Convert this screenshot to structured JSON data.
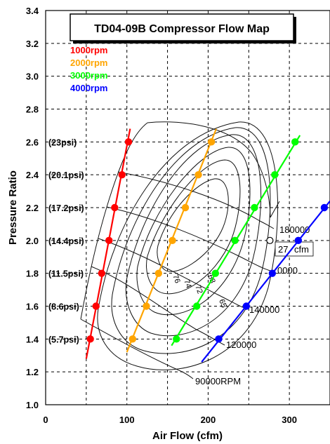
{
  "chart_data": {
    "type": "line",
    "title": "TD04-09B Compressor Flow Map",
    "xlabel": "Air Flow (cfm)",
    "ylabel": "Pressure Ratio",
    "xlim": [
      0,
      350
    ],
    "ylim": [
      1.0,
      3.4
    ],
    "xticks": [
      "0",
      "100",
      "200",
      "300"
    ],
    "yticks": [
      "1.0",
      "1.2",
      "1.4",
      "1.6",
      "1.8",
      "2.0",
      "2.2",
      "2.4",
      "2.6",
      "2.8",
      "3.0",
      "3.2",
      "3.4"
    ],
    "psi_labels": [
      {
        "y": 2.6,
        "label": "(23psi)"
      },
      {
        "y": 2.4,
        "label": "(20.1psi)"
      },
      {
        "y": 2.2,
        "label": "(17.2psi)"
      },
      {
        "y": 2.0,
        "label": "(14.4psi)"
      },
      {
        "y": 1.8,
        "label": "(11.5psi)"
      },
      {
        "y": 1.6,
        "label": "(8.6psi)"
      },
      {
        "y": 1.4,
        "label": "(5.7psi)"
      }
    ],
    "grid": true,
    "legend_position": "top-left",
    "series": [
      {
        "name": "1000rpm",
        "color": "#ff0000",
        "x": [
          55,
          62,
          69,
          78,
          85,
          94,
          102
        ],
        "y": [
          1.4,
          1.6,
          1.8,
          2.0,
          2.2,
          2.4,
          2.6
        ],
        "line_x": [
          50,
          104
        ],
        "line_y": [
          1.28,
          2.68
        ]
      },
      {
        "name": "2000rpm",
        "color": "#ffa500",
        "x": [
          107,
          124,
          139,
          156,
          172,
          188,
          204
        ],
        "y": [
          1.4,
          1.6,
          1.8,
          2.0,
          2.2,
          2.4,
          2.6
        ],
        "line_x": [
          100,
          210
        ],
        "line_y": [
          1.32,
          2.68
        ]
      },
      {
        "name": "3000rpm",
        "color": "#00ff00",
        "x": [
          161,
          186,
          209,
          233,
          257,
          282,
          307
        ],
        "y": [
          1.4,
          1.6,
          1.8,
          2.0,
          2.2,
          2.4,
          2.6
        ],
        "line_x": [
          155,
          313
        ],
        "line_y": [
          1.36,
          2.64
        ]
      },
      {
        "name": "4000rpm",
        "color": "#0000ff",
        "x": [
          213,
          247,
          279,
          311,
          343
        ],
        "y": [
          1.4,
          1.6,
          1.8,
          2.0,
          2.2
        ],
        "line_x": [
          192,
          350
        ],
        "line_y": [
          1.26,
          2.24
        ]
      }
    ],
    "annotations": [
      {
        "text": "90000RPM"
      },
      {
        "text": "120000"
      },
      {
        "text": "140000"
      },
      {
        "text": "0000"
      },
      {
        "text": "180000"
      },
      {
        "text": "27",
        "box_text": "cfm"
      },
      {
        "text": "68"
      },
      {
        "text": "65"
      },
      {
        "text": "72"
      },
      {
        "text": "74"
      },
      {
        "text": "76"
      }
    ],
    "marked_point": {
      "x": 276,
      "y": 2.0
    }
  }
}
